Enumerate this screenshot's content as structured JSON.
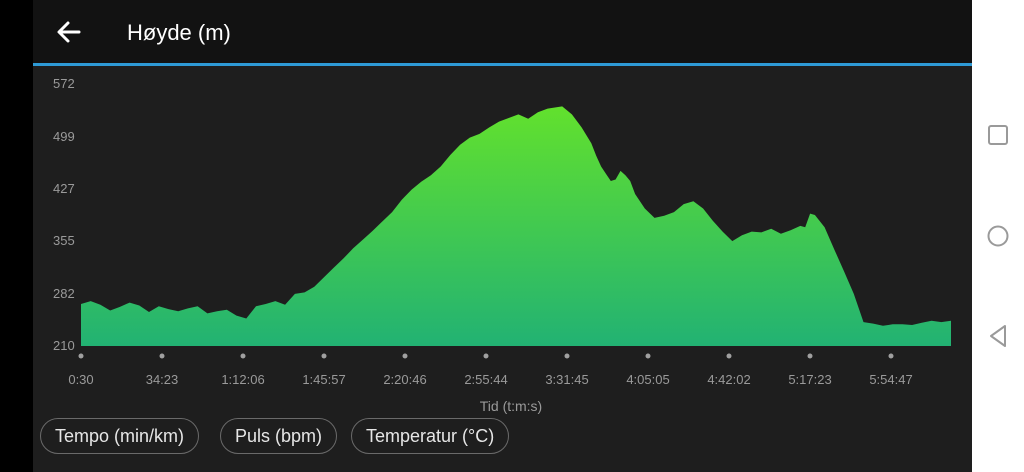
{
  "header": {
    "title": "Høyde (m)",
    "back_icon": "arrow-left-icon"
  },
  "colors": {
    "accent": "#2e9ad6",
    "area_top": "#62e12d",
    "area_bottom": "#22b273"
  },
  "chart_data": {
    "type": "area",
    "title": "Høyde (m)",
    "xlabel": "Tid (t:m:s)",
    "ylabel": "",
    "ylim": [
      210,
      572
    ],
    "y_ticks": [
      "572",
      "499",
      "427",
      "355",
      "282",
      "210"
    ],
    "x_ticks": [
      "0:30",
      "34:23",
      "1:12:06",
      "1:45:57",
      "2:20:46",
      "2:55:44",
      "3:31:45",
      "4:05:05",
      "4:42:02",
      "5:17:23",
      "5:54:47"
    ],
    "series": [
      {
        "values": [
          [
            0,
            268
          ],
          [
            0.2,
            272
          ],
          [
            0.4,
            267
          ],
          [
            0.6,
            259
          ],
          [
            0.8,
            264
          ],
          [
            1.0,
            270
          ],
          [
            1.2,
            266
          ],
          [
            1.4,
            257
          ],
          [
            1.6,
            265
          ],
          [
            1.8,
            261
          ],
          [
            2.0,
            258
          ],
          [
            2.2,
            262
          ],
          [
            2.4,
            265
          ],
          [
            2.6,
            255
          ],
          [
            2.8,
            258
          ],
          [
            3.0,
            260
          ],
          [
            3.2,
            252
          ],
          [
            3.4,
            248
          ],
          [
            3.6,
            265
          ],
          [
            3.8,
            268
          ],
          [
            4.0,
            272
          ],
          [
            4.2,
            267
          ],
          [
            4.4,
            282
          ],
          [
            4.6,
            284
          ],
          [
            4.8,
            292
          ],
          [
            5.0,
            305
          ],
          [
            5.2,
            318
          ],
          [
            5.4,
            331
          ],
          [
            5.6,
            345
          ],
          [
            5.8,
            357
          ],
          [
            6.0,
            369
          ],
          [
            6.2,
            382
          ],
          [
            6.4,
            395
          ],
          [
            6.6,
            412
          ],
          [
            6.8,
            426
          ],
          [
            7.0,
            437
          ],
          [
            7.2,
            446
          ],
          [
            7.4,
            458
          ],
          [
            7.6,
            474
          ],
          [
            7.8,
            488
          ],
          [
            8.0,
            498
          ],
          [
            8.2,
            503
          ],
          [
            8.4,
            512
          ],
          [
            8.6,
            520
          ],
          [
            8.8,
            525
          ],
          [
            9.0,
            530
          ],
          [
            9.2,
            524
          ],
          [
            9.4,
            533
          ],
          [
            9.6,
            538
          ],
          [
            9.9,
            541
          ],
          [
            10.1,
            530
          ],
          [
            10.3,
            512
          ],
          [
            10.5,
            490
          ],
          [
            10.6,
            473
          ],
          [
            10.7,
            458
          ],
          [
            10.8,
            448
          ],
          [
            10.9,
            438
          ],
          [
            11.0,
            440
          ],
          [
            11.1,
            452
          ],
          [
            11.2,
            446
          ],
          [
            11.3,
            438
          ],
          [
            11.4,
            420
          ],
          [
            11.6,
            400
          ],
          [
            11.8,
            387
          ],
          [
            12.0,
            390
          ],
          [
            12.2,
            395
          ],
          [
            12.4,
            406
          ],
          [
            12.6,
            410
          ],
          [
            12.8,
            400
          ],
          [
            13.0,
            383
          ],
          [
            13.2,
            368
          ],
          [
            13.4,
            355
          ],
          [
            13.6,
            363
          ],
          [
            13.8,
            368
          ],
          [
            14.0,
            367
          ],
          [
            14.2,
            372
          ],
          [
            14.4,
            365
          ],
          [
            14.6,
            370
          ],
          [
            14.8,
            376
          ],
          [
            14.9,
            374
          ],
          [
            15.0,
            393
          ],
          [
            15.1,
            391
          ],
          [
            15.3,
            374
          ],
          [
            15.5,
            343
          ],
          [
            15.7,
            313
          ],
          [
            15.9,
            282
          ],
          [
            16.1,
            243
          ],
          [
            16.3,
            241
          ],
          [
            16.5,
            238
          ],
          [
            16.7,
            240
          ],
          [
            16.9,
            240
          ],
          [
            17.1,
            239
          ],
          [
            17.3,
            242
          ],
          [
            17.5,
            245
          ],
          [
            17.7,
            243
          ],
          [
            17.9,
            245
          ]
        ]
      }
    ]
  },
  "buttons": {
    "pace_label": "Tempo (min/km)",
    "pulse_label": "Puls (bpm)",
    "temperature_label": "Temperatur (°C)"
  },
  "navigation": {
    "recents_icon": "square-icon",
    "home_icon": "circle-icon",
    "back_icon": "triangle-back-icon"
  }
}
